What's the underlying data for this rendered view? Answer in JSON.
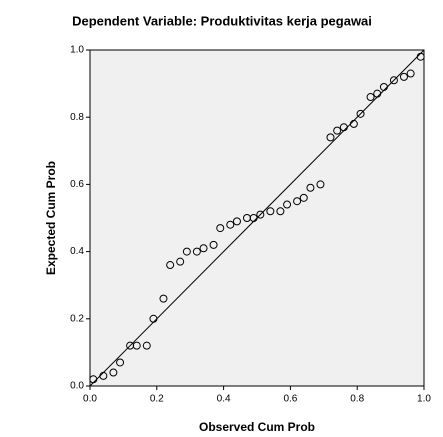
{
  "chart_data": {
    "type": "scatter",
    "title": "Dependent Variable: Produktivitas kerja pegawai",
    "x_label": "Observed Cum Prob",
    "y_label": "Expected Cum Prob",
    "xlim": [
      0,
      1
    ],
    "ylim": [
      0,
      1
    ],
    "xticks": [
      {
        "value": 0,
        "label": "0.0"
      },
      0.2,
      0.4,
      0.6,
      0.8,
      {
        "value": 1,
        "label": "1.0"
      }
    ],
    "yticks": [
      {
        "value": 0,
        "label": "0.0"
      },
      0.2,
      0.4,
      0.6,
      0.8,
      {
        "value": 1,
        "label": "1.0"
      }
    ],
    "x": [
      0.01,
      0.04,
      0.07,
      0.09,
      0.12,
      0.14,
      0.17,
      0.19,
      0.22,
      0.24,
      0.27,
      0.29,
      0.32,
      0.34,
      0.37,
      0.39,
      0.42,
      0.44,
      0.47,
      0.49,
      0.51,
      0.54,
      0.57,
      0.59,
      0.62,
      0.64,
      0.66,
      0.69,
      0.72,
      0.74,
      0.76,
      0.79,
      0.81,
      0.84,
      0.86,
      0.88,
      0.91,
      0.94,
      0.96,
      0.99
    ],
    "values": [
      0.02,
      0.03,
      0.04,
      0.07,
      0.12,
      0.12,
      0.12,
      0.2,
      0.26,
      0.36,
      0.37,
      0.4,
      0.4,
      0.41,
      0.42,
      0.47,
      0.48,
      0.49,
      0.5,
      0.5,
      0.51,
      0.52,
      0.52,
      0.54,
      0.55,
      0.56,
      0.59,
      0.6,
      0.74,
      0.76,
      0.77,
      0.78,
      0.81,
      0.86,
      0.87,
      0.89,
      0.91,
      0.92,
      0.93,
      0.98
    ],
    "color": "#000000"
  }
}
